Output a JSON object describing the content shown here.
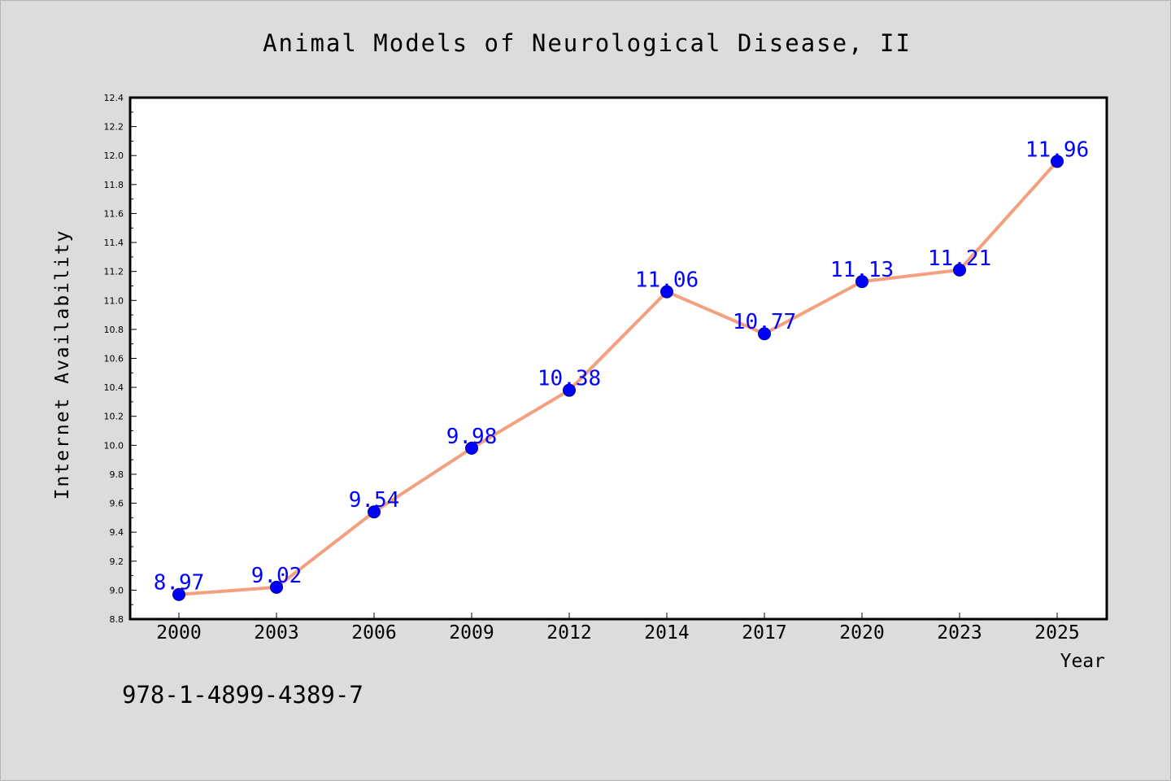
{
  "chart_data": {
    "type": "line",
    "title": "Animal Models of Neurological Disease, II",
    "xlabel": "Year",
    "ylabel": "Internet Availability",
    "categories": [
      "2000",
      "2003",
      "2006",
      "2009",
      "2012",
      "2014",
      "2017",
      "2020",
      "2023",
      "2025"
    ],
    "values": [
      8.97,
      9.02,
      9.54,
      9.98,
      10.38,
      11.06,
      10.77,
      11.13,
      11.21,
      11.96
    ],
    "data_labels": [
      "8.97",
      "9.02",
      "9.54",
      "9.98",
      "10.38",
      "11.06",
      "10.77",
      "11.13",
      "11.21",
      "11.96"
    ],
    "ylim": [
      8.8,
      12.4
    ],
    "yticks": [
      "8.8",
      "9.0",
      "9.2",
      "9.4",
      "9.6",
      "9.8",
      "10.0",
      "10.2",
      "10.4",
      "10.6",
      "10.8",
      "11.0",
      "11.2",
      "11.4",
      "11.6",
      "11.8",
      "12.0",
      "12.2",
      "12.4"
    ],
    "grid": false,
    "line_color": "#f4a07e",
    "marker_color": "#0000ff",
    "label_color": "#0000ff"
  },
  "footer_text": "978-1-4899-4389-7",
  "colors": {
    "page_background": "#dcdcdc",
    "plot_background": "#ffffff"
  }
}
